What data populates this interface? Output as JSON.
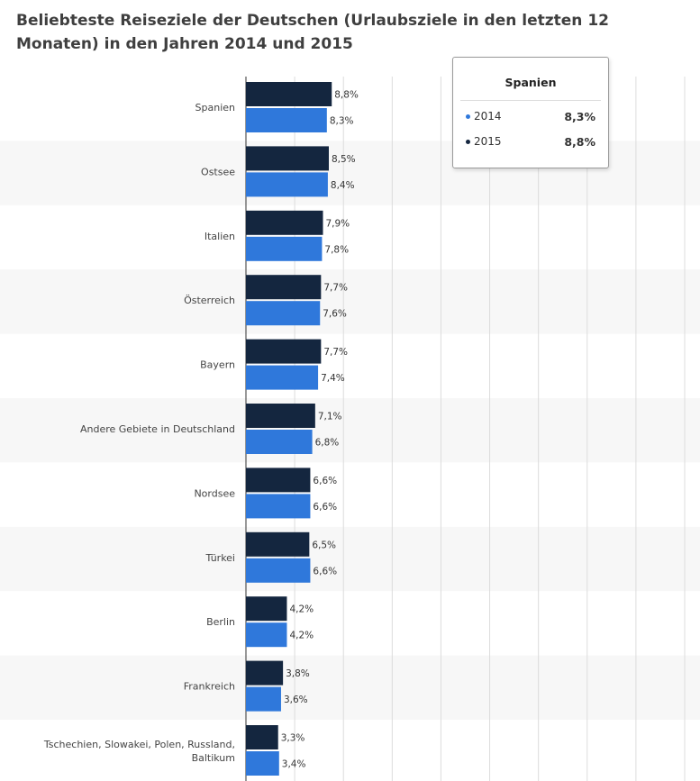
{
  "title": "Beliebteste Reiseziele der Deutschen (Urlaubsziele in den letzten 12 Monaten) in den Jahren 2014 und 2015",
  "colors": {
    "series_2015": "#14263f",
    "series_2014": "#2f78db",
    "band": "#f7f7f7",
    "grid": "#dcdcdc",
    "axis": "#333333"
  },
  "tooltip": {
    "title": "Spanien",
    "rows": [
      {
        "name": "2014",
        "value": "8,3%",
        "color": "#2f78db"
      },
      {
        "name": "2015",
        "value": "8,8%",
        "color": "#14263f"
      }
    ]
  },
  "chart_data": {
    "type": "bar",
    "orientation": "horizontal",
    "categories": [
      "Spanien",
      "Ostsee",
      "Italien",
      "Österreich",
      "Bayern",
      "Andere Gebiete in Deutschland",
      "Nordsee",
      "Türkei",
      "Berlin",
      "Frankreich",
      "Tschechien, Slowakei, Polen, Russland, Baltikum"
    ],
    "series": [
      {
        "name": "2015",
        "values": [
          8.8,
          8.5,
          7.9,
          7.7,
          7.7,
          7.1,
          6.6,
          6.5,
          4.2,
          3.8,
          3.3
        ],
        "labels": [
          "8,8%",
          "8,5%",
          "7,9%",
          "7,7%",
          "7,7%",
          "7,1%",
          "6,6%",
          "6,5%",
          "4,2%",
          "3,8%",
          "3,3%"
        ]
      },
      {
        "name": "2014",
        "values": [
          8.3,
          8.4,
          7.8,
          7.6,
          7.4,
          6.8,
          6.6,
          6.6,
          4.2,
          3.6,
          3.4
        ],
        "labels": [
          "8,3%",
          "8,4%",
          "7,8%",
          "7,6%",
          "7,4%",
          "6,8%",
          "6,6%",
          "6,6%",
          "4,2%",
          "3,6%",
          "3,4%"
        ]
      }
    ],
    "xlim": [
      0,
      45
    ],
    "grid": true
  }
}
